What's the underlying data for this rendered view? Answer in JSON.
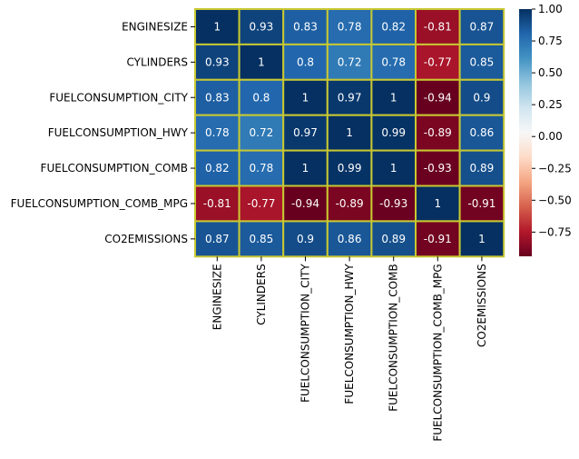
{
  "chart_data": {
    "type": "heatmap",
    "rows": [
      "ENGINESIZE",
      "CYLINDERS",
      "FUELCONSUMPTION_CITY",
      "FUELCONSUMPTION_HWY",
      "FUELCONSUMPTION_COMB",
      "FUELCONSUMPTION_COMB_MPG",
      "CO2EMISSIONS"
    ],
    "columns": [
      "ENGINESIZE",
      "CYLINDERS",
      "FUELCONSUMPTION_CITY",
      "FUELCONSUMPTION_HWY",
      "FUELCONSUMPTION_COMB",
      "FUELCONSUMPTION_COMB_MPG",
      "CO2EMISSIONS"
    ],
    "values": [
      [
        1,
        0.93,
        0.83,
        0.78,
        0.82,
        -0.81,
        0.87
      ],
      [
        0.93,
        1,
        0.8,
        0.72,
        0.78,
        -0.77,
        0.85
      ],
      [
        0.83,
        0.8,
        1,
        0.97,
        1,
        -0.94,
        0.9
      ],
      [
        0.78,
        0.72,
        0.97,
        1,
        0.99,
        -0.89,
        0.86
      ],
      [
        0.82,
        0.78,
        1,
        0.99,
        1,
        -0.93,
        0.89
      ],
      [
        -0.81,
        -0.77,
        -0.94,
        -0.89,
        -0.93,
        1,
        -0.91
      ],
      [
        0.87,
        0.85,
        0.9,
        0.86,
        0.89,
        -0.91,
        1
      ]
    ],
    "annotations": [
      [
        "1",
        "0.93",
        "0.83",
        "0.78",
        "0.82",
        "-0.81",
        "0.87"
      ],
      [
        "0.93",
        "1",
        "0.8",
        "0.72",
        "0.78",
        "-0.77",
        "0.85"
      ],
      [
        "0.83",
        "0.8",
        "1",
        "0.97",
        "1",
        "-0.94",
        "0.9"
      ],
      [
        "0.78",
        "0.72",
        "0.97",
        "1",
        "0.99",
        "-0.89",
        "0.86"
      ],
      [
        "0.82",
        "0.78",
        "1",
        "0.99",
        "1",
        "-0.93",
        "0.89"
      ],
      [
        "-0.81",
        "-0.77",
        "-0.94",
        "-0.89",
        "-0.93",
        "1",
        "-0.91"
      ],
      [
        "0.87",
        "0.85",
        "0.9",
        "0.86",
        "0.89",
        "-0.91",
        "1"
      ]
    ],
    "colormap": "RdBu",
    "vmin": -0.94,
    "vmax": 1.0,
    "cell_border_color": "#c8c832",
    "colorbar_ticks": [
      "1.00",
      "0.75",
      "0.50",
      "0.25",
      "0.00",
      "−0.25",
      "−0.50",
      "−0.75"
    ],
    "colorbar_tick_values": [
      1.0,
      0.75,
      0.5,
      0.25,
      0.0,
      -0.25,
      -0.5,
      -0.75
    ]
  }
}
